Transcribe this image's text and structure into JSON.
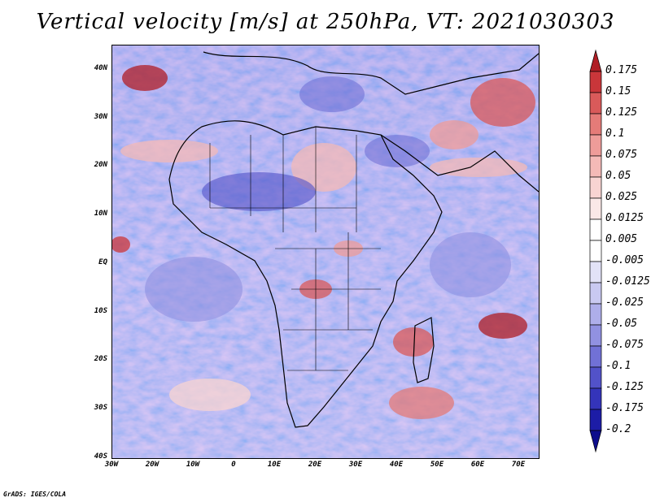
{
  "title": "Vertical velocity [m/s] at 250hPa, VT: 2021030303",
  "footer": "GrADS: IGES/COLA",
  "map": {
    "lat_labels": [
      "40N",
      "30N",
      "20N",
      "10N",
      "EQ",
      "10S",
      "20S",
      "30S",
      "40S"
    ],
    "lon_labels": [
      "30W",
      "20W",
      "10W",
      "0",
      "10E",
      "20E",
      "30E",
      "40E",
      "50E",
      "60E",
      "70E"
    ]
  },
  "colorbar": {
    "levels": [
      "0.175",
      "0.15",
      "0.125",
      "0.1",
      "0.075",
      "0.05",
      "0.025",
      "0.0125",
      "0.005",
      "-0.005",
      "-0.0125",
      "-0.025",
      "-0.05",
      "-0.075",
      "-0.1",
      "-0.125",
      "-0.175",
      "-0.2"
    ],
    "colors": [
      "#b01e25",
      "#c9363a",
      "#d95a5a",
      "#e57b78",
      "#ee9c99",
      "#f4bab7",
      "#f8d4d2",
      "#fae8e7",
      "#ffffff",
      "#ffffff",
      "#e2e2f7",
      "#c9c9f1",
      "#aeaeea",
      "#9191e1",
      "#7171d6",
      "#5252c9",
      "#3434ba",
      "#1c1ca6",
      "#0d0d8c"
    ]
  },
  "legend": {
    "position": "right",
    "arrows": "both-ends"
  }
}
